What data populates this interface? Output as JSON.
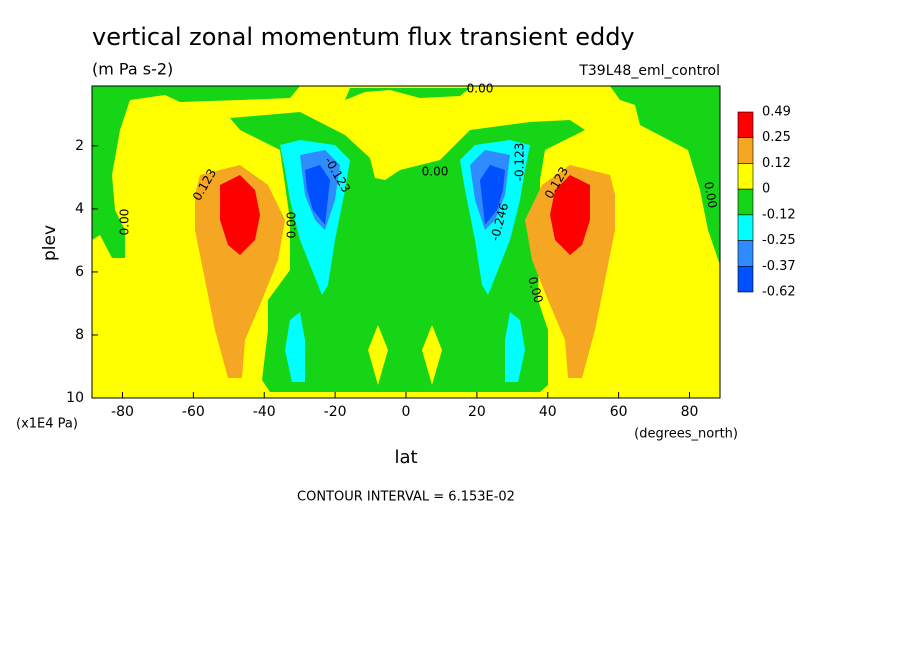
{
  "chart_data": {
    "type": "contour",
    "title": "vertical zonal momentum flux transient eddy",
    "subtitle": "(m Pa s-2)",
    "dataset": "T39L48_eml_control",
    "x_label": "lat",
    "x_units": "(degrees_north)",
    "y_label": "plev",
    "y_units": "(x1E4 Pa)",
    "footer": "CONTOUR INTERVAL = 6.153E-02",
    "xlim": [
      -88.6,
      88.6
    ],
    "xticks": [
      -80,
      -60,
      -40,
      -20,
      0,
      20,
      40,
      60,
      80
    ],
    "ylim": [
      10,
      0.1
    ],
    "yticks": [
      2,
      4,
      6,
      8,
      10
    ],
    "colorbar": {
      "levels": [
        0.49,
        0.25,
        0.12,
        0,
        -0.12,
        -0.25,
        -0.37,
        -0.62
      ],
      "colors": [
        "#ff0000",
        "#f5a623",
        "#ffff00",
        "#16d416",
        "#00ffff",
        "#2f8cff",
        "#0050ff"
      ]
    },
    "contour_labels": [
      "0.123",
      "-0.123",
      "0.00",
      "0.00",
      "0.00",
      "0.00",
      "0.123",
      "-0.246",
      "-0.123",
      "0.00",
      "0.00"
    ]
  }
}
